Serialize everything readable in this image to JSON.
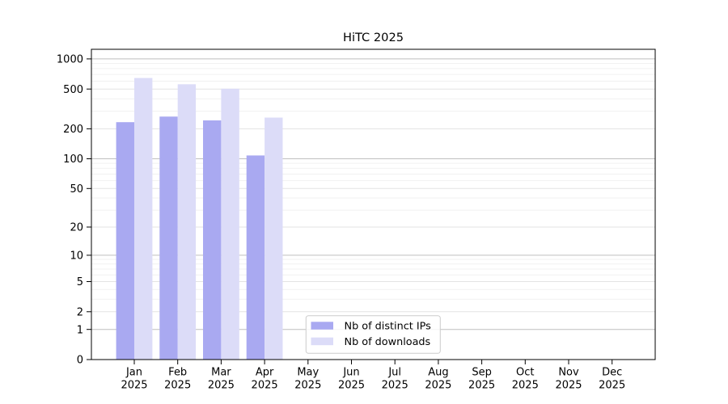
{
  "chart_data": {
    "type": "bar",
    "title": "HiTC 2025",
    "x_categories": [
      "Jan",
      "Feb",
      "Mar",
      "Apr",
      "May",
      "Jun",
      "Jul",
      "Aug",
      "Sep",
      "Oct",
      "Nov",
      "Dec"
    ],
    "x_sub_label": "2025",
    "series": [
      {
        "name": "Nb of distinct IPs",
        "color": "#a9a9f1",
        "values": [
          233,
          265,
          243,
          108,
          0,
          0,
          0,
          0,
          0,
          0,
          0,
          0
        ]
      },
      {
        "name": "Nb of downloads",
        "color": "#dcdcf8",
        "values": [
          645,
          558,
          504,
          259,
          0,
          0,
          0,
          0,
          0,
          0,
          0,
          0
        ]
      }
    ],
    "y_scale": "log1p",
    "y_ticks": [
      0,
      1,
      2,
      5,
      10,
      20,
      50,
      100,
      200,
      500,
      1000
    ],
    "ylim": [
      0,
      1255
    ],
    "grid": "horizontal",
    "legend_position": "lower-center",
    "colors": {
      "bar_dark": "#a9a9f1",
      "bar_light": "#dcdcf8",
      "grid_major": "#bfbfbf",
      "grid_mid": "#e3e3e3",
      "grid_minor": "#f1f1f1",
      "axis": "#000000",
      "legend_border": "#cccccc"
    }
  }
}
